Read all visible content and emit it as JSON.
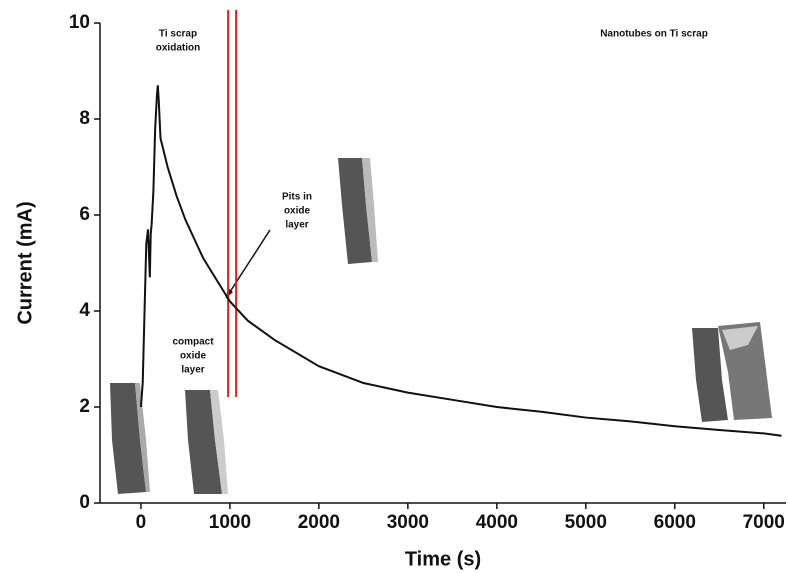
{
  "chart_data": {
    "type": "line",
    "x_label": "Time (s)",
    "y_label": "Current (mA)",
    "x": [
      0,
      20,
      60,
      80,
      100,
      110,
      120,
      140,
      160,
      180,
      190,
      200,
      220,
      260,
      300,
      400,
      500,
      600,
      700,
      800,
      900,
      1000,
      1200,
      1500,
      2000,
      2500,
      3000,
      3500,
      4000,
      4500,
      5000,
      5500,
      6000,
      6500,
      7000,
      7200
    ],
    "values": [
      2.0,
      2.5,
      5.4,
      5.7,
      4.7,
      5.6,
      5.8,
      6.5,
      7.8,
      8.5,
      8.7,
      8.4,
      7.6,
      7.3,
      7.0,
      6.4,
      5.9,
      5.5,
      5.1,
      4.8,
      4.5,
      4.2,
      3.8,
      3.4,
      2.85,
      2.5,
      2.3,
      2.15,
      2.0,
      1.9,
      1.78,
      1.7,
      1.6,
      1.52,
      1.45,
      1.4
    ],
    "color": "#111111",
    "vlines": [
      980,
      1070
    ],
    "vline_color": "#e02020",
    "xlim": [
      -460,
      7250
    ],
    "ylim": [
      0,
      10
    ],
    "xticks": [
      0,
      1000,
      2000,
      3000,
      4000,
      5000,
      6000,
      7000
    ],
    "yticks": [
      0,
      2,
      4,
      6,
      8,
      10
    ],
    "annotations": [
      {
        "lines": [
          "Ti scrap",
          "oxidation"
        ]
      },
      {
        "lines": [
          "Nanotubes on Ti scrap"
        ]
      },
      {
        "lines": [
          "Pits in",
          "oxide",
          "layer"
        ]
      },
      {
        "lines": [
          "compact",
          "oxide",
          "layer"
        ]
      }
    ]
  }
}
